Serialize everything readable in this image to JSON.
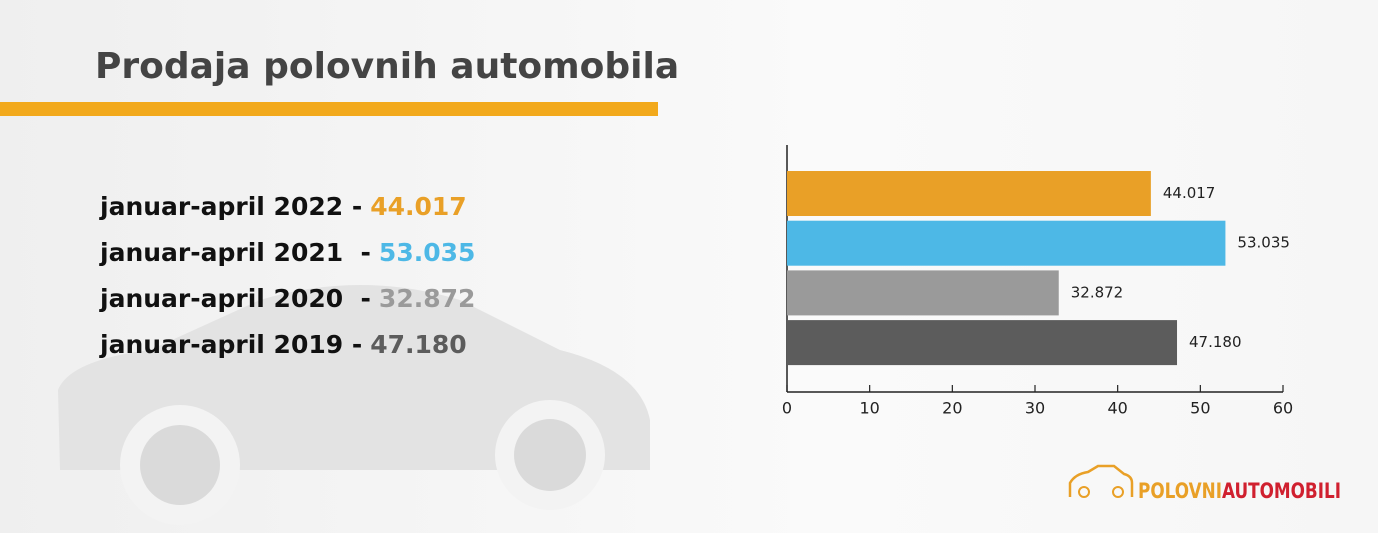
{
  "title": "Prodaja polovnih automobila",
  "summary": [
    "januar-april 2022 -",
    "januar-april 2021  -",
    "januar-april 2020  -",
    "januar-april 2019 -"
  ],
  "chart_data": {
    "type": "bar",
    "orientation": "horizontal",
    "values": [
      44.017,
      53.035,
      32.872,
      47.18
    ],
    "value_labels": [
      "44.017",
      "53.035",
      "32.872",
      "47.180"
    ],
    "colors": [
      "#e9a027",
      "#4db8e6",
      "#9a9a9a",
      "#5c5c5c"
    ],
    "xlim": [
      0,
      60
    ],
    "xticks": [
      0,
      10,
      20,
      30,
      40,
      50,
      60
    ]
  },
  "logo": {
    "part1": "POLOVNI",
    "part2": "AUTOMOBILI"
  }
}
